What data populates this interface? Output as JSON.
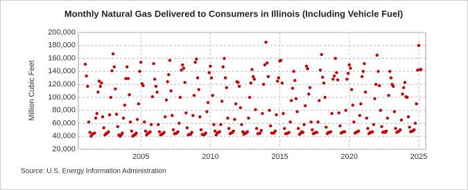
{
  "chart_data": {
    "type": "scatter",
    "title": "Monthly Natural Gas Delivered to Consumers in Illinois (Including Vehicle Fuel)",
    "ylabel": "Million Cubic Feet",
    "source": "Source: U.S. Energy Information Administration",
    "color": "#cc0000",
    "grid": true,
    "xlim": [
      2000.5,
      2025.5
    ],
    "xticks": [
      2005,
      2010,
      2015,
      2020,
      2025
    ],
    "ylim": [
      20000,
      200000
    ],
    "yticks": [
      {
        "value": 20000,
        "label": "20,000"
      },
      {
        "value": 40000,
        "label": "40,000"
      },
      {
        "value": 60000,
        "label": "60,000"
      },
      {
        "value": 80000,
        "label": "80,000"
      },
      {
        "value": 100000,
        "label": "100,000"
      },
      {
        "value": 120000,
        "label": "120,000"
      },
      {
        "value": 140000,
        "label": "140,000"
      },
      {
        "value": 160000,
        "label": "160,000"
      },
      {
        "value": 180000,
        "label": "180,000"
      },
      {
        "value": 200000,
        "label": "200,000"
      }
    ],
    "x": [
      2001,
      2001.083,
      2001.167,
      2001.25,
      2001.333,
      2001.417,
      2001.5,
      2001.583,
      2001.667,
      2001.75,
      2001.833,
      2001.917,
      2002,
      2002.083,
      2002.167,
      2002.25,
      2002.333,
      2002.417,
      2002.5,
      2002.583,
      2002.667,
      2002.75,
      2002.833,
      2002.917,
      2003,
      2003.083,
      2003.167,
      2003.25,
      2003.333,
      2003.417,
      2003.5,
      2003.583,
      2003.667,
      2003.75,
      2003.833,
      2003.917,
      2004,
      2004.083,
      2004.167,
      2004.25,
      2004.333,
      2004.417,
      2004.5,
      2004.583,
      2004.667,
      2004.75,
      2004.833,
      2004.917,
      2005,
      2005.083,
      2005.167,
      2005.25,
      2005.333,
      2005.417,
      2005.5,
      2005.583,
      2005.667,
      2005.75,
      2005.833,
      2005.917,
      2006,
      2006.083,
      2006.167,
      2006.25,
      2006.333,
      2006.417,
      2006.5,
      2006.583,
      2006.667,
      2006.75,
      2006.833,
      2006.917,
      2007,
      2007.083,
      2007.167,
      2007.25,
      2007.333,
      2007.417,
      2007.5,
      2007.583,
      2007.667,
      2007.75,
      2007.833,
      2007.917,
      2008,
      2008.083,
      2008.167,
      2008.25,
      2008.333,
      2008.417,
      2008.5,
      2008.583,
      2008.667,
      2008.75,
      2008.833,
      2008.917,
      2009,
      2009.083,
      2009.167,
      2009.25,
      2009.333,
      2009.417,
      2009.5,
      2009.583,
      2009.667,
      2009.75,
      2009.833,
      2009.917,
      2010,
      2010.083,
      2010.167,
      2010.25,
      2010.333,
      2010.417,
      2010.5,
      2010.583,
      2010.667,
      2010.75,
      2010.833,
      2010.917,
      2011,
      2011.083,
      2011.167,
      2011.25,
      2011.333,
      2011.417,
      2011.5,
      2011.583,
      2011.667,
      2011.75,
      2011.833,
      2011.917,
      2012,
      2012.083,
      2012.167,
      2012.25,
      2012.333,
      2012.417,
      2012.5,
      2012.583,
      2012.667,
      2012.75,
      2012.833,
      2012.917,
      2013,
      2013.083,
      2013.167,
      2013.25,
      2013.333,
      2013.417,
      2013.5,
      2013.583,
      2013.667,
      2013.75,
      2013.833,
      2013.917,
      2014,
      2014.083,
      2014.167,
      2014.25,
      2014.333,
      2014.417,
      2014.5,
      2014.583,
      2014.667,
      2014.75,
      2014.833,
      2014.917,
      2015,
      2015.083,
      2015.167,
      2015.25,
      2015.333,
      2015.417,
      2015.5,
      2015.583,
      2015.667,
      2015.75,
      2015.833,
      2015.917,
      2016,
      2016.083,
      2016.167,
      2016.25,
      2016.333,
      2016.417,
      2016.5,
      2016.583,
      2016.667,
      2016.75,
      2016.833,
      2016.917,
      2017,
      2017.083,
      2017.167,
      2017.25,
      2017.333,
      2017.417,
      2017.5,
      2017.583,
      2017.667,
      2017.75,
      2017.833,
      2017.917,
      2018,
      2018.083,
      2018.167,
      2018.25,
      2018.333,
      2018.417,
      2018.5,
      2018.583,
      2018.667,
      2018.75,
      2018.833,
      2018.917,
      2019,
      2019.083,
      2019.167,
      2019.25,
      2019.333,
      2019.417,
      2019.5,
      2019.583,
      2019.667,
      2019.75,
      2019.833,
      2019.917,
      2020,
      2020.083,
      2020.167,
      2020.25,
      2020.333,
      2020.417,
      2020.5,
      2020.583,
      2020.667,
      2020.75,
      2020.833,
      2020.917,
      2021,
      2021.083,
      2021.167,
      2021.25,
      2021.333,
      2021.417,
      2021.5,
      2021.583,
      2021.667,
      2021.75,
      2021.833,
      2021.917,
      2022,
      2022.083,
      2022.167,
      2022.25,
      2022.333,
      2022.417,
      2022.5,
      2022.583,
      2022.667,
      2022.75,
      2022.833,
      2022.917,
      2023,
      2023.083,
      2023.167,
      2023.25,
      2023.333,
      2023.417,
      2023.5,
      2023.583,
      2023.667,
      2023.75,
      2023.833,
      2023.917,
      2024,
      2024.083,
      2024.167,
      2024.25,
      2024.333,
      2024.417,
      2024.5,
      2024.583,
      2024.667,
      2024.75,
      2024.833,
      2024.917,
      2025,
      2025.083,
      2025.167
    ],
    "values": [
      151000,
      133000,
      117000,
      62000,
      46000,
      40000,
      43000,
      44000,
      45000,
      68000,
      75000,
      108000,
      125000,
      117000,
      122000,
      70000,
      53000,
      42000,
      44000,
      45000,
      47000,
      73000,
      100000,
      141000,
      167000,
      147000,
      113000,
      74000,
      55000,
      42000,
      40000,
      42000,
      45000,
      68000,
      88000,
      129000,
      147000,
      129000,
      104000,
      62000,
      48000,
      40000,
      42000,
      42000,
      45000,
      66000,
      90000,
      140000,
      154000,
      121000,
      118000,
      62000,
      48000,
      42000,
      45000,
      45000,
      47000,
      58000,
      101000,
      152000,
      128000,
      117000,
      108000,
      58000,
      47000,
      42000,
      43000,
      44000,
      46000,
      70000,
      96000,
      124000,
      135000,
      157000,
      110000,
      72000,
      50000,
      44000,
      44000,
      45000,
      47000,
      60000,
      100000,
      142000,
      150000,
      145000,
      123000,
      76000,
      53000,
      42000,
      43000,
      43000,
      46000,
      72000,
      103000,
      154000,
      159000,
      130000,
      112000,
      70000,
      50000,
      43000,
      42000,
      43000,
      45000,
      78000,
      92000,
      138000,
      148000,
      130000,
      103000,
      58000,
      48000,
      42000,
      45000,
      46000,
      47000,
      58000,
      94000,
      147000,
      160000,
      130000,
      115000,
      68000,
      52000,
      44000,
      45000,
      46000,
      48000,
      66000,
      90000,
      124000,
      123000,
      117000,
      84000,
      58000,
      47000,
      43000,
      45000,
      45000,
      47000,
      68000,
      100000,
      122000,
      143000,
      132000,
      128000,
      81000,
      52000,
      44000,
      44000,
      45000,
      49000,
      75000,
      120000,
      150000,
      185000,
      153000,
      132000,
      80000,
      56000,
      45000,
      45000,
      45000,
      48000,
      73000,
      125000,
      130000,
      156000,
      157000,
      122000,
      75000,
      52000,
      44000,
      44000,
      45000,
      46000,
      62000,
      95000,
      114000,
      140000,
      126000,
      98000,
      78000,
      52000,
      43000,
      45000,
      47000,
      46000,
      58000,
      87000,
      148000,
      144000,
      105000,
      115000,
      62000,
      50000,
      44000,
      45000,
      46000,
      46000,
      62000,
      95000,
      142000,
      166000,
      131000,
      122000,
      100000,
      54000,
      44000,
      46000,
      46000,
      47000,
      75000,
      128000,
      133000,
      160000,
      138000,
      127000,
      76000,
      56000,
      45000,
      46000,
      47000,
      47000,
      80000,
      128000,
      137000,
      150000,
      145000,
      112000,
      88000,
      62000,
      45000,
      46000,
      47000,
      48000,
      72000,
      90000,
      132000,
      140000,
      152000,
      108000,
      68000,
      52000,
      44000,
      46000,
      46000,
      47000,
      58000,
      98000,
      120000,
      165000,
      140000,
      118000,
      80000,
      55000,
      46000,
      47000,
      46000,
      48000,
      68000,
      103000,
      140000,
      130000,
      120000,
      117000,
      78000,
      52000,
      46000,
      47000,
      48000,
      50000,
      65000,
      105000,
      115000,
      123000,
      101000,
      100000,
      70000,
      54000,
      47000,
      48000,
      48000,
      50000,
      60000,
      90000,
      142000,
      180000,
      143000,
      143000
    ]
  }
}
